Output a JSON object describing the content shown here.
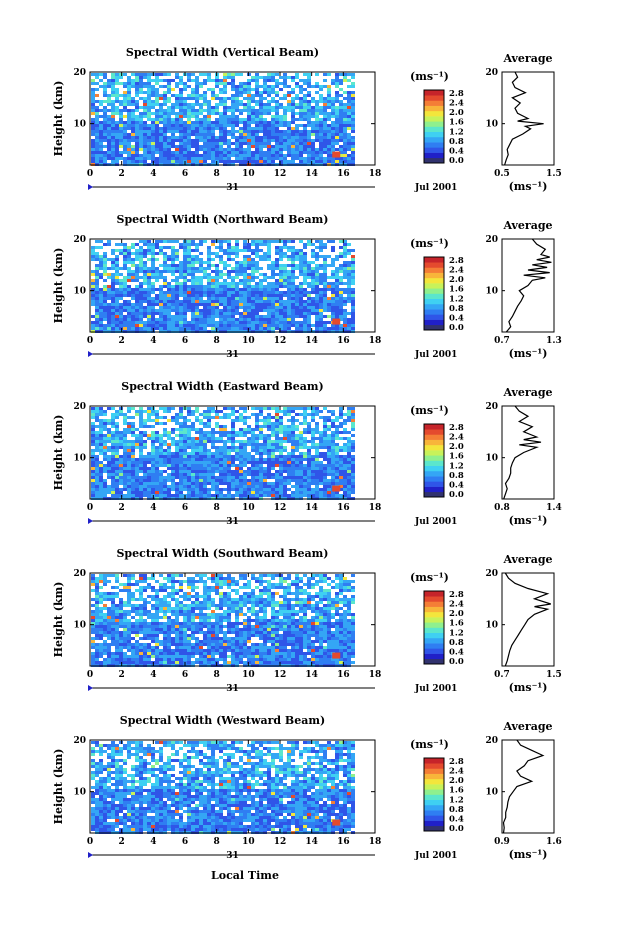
{
  "figure": {
    "x_title": "Local Time",
    "date_label": "Jul 2001",
    "day_label": "31",
    "colors": {
      "scale": [
        "#31326e",
        "#2020c8",
        "#2f55e8",
        "#2f7ef2",
        "#34a6f5",
        "#3fd0f2",
        "#5be6cc",
        "#8ff08e",
        "#c8f25a",
        "#f3e63c",
        "#f8b53a",
        "#f47e36",
        "#e44a2e",
        "#c6242a"
      ],
      "missing": "#ffffff"
    }
  },
  "chart_data": [
    {
      "type": "heatmap",
      "title": "Spectral Width (Vertical Beam)",
      "xlabel": "",
      "ylabel": "Height (km)",
      "xlim": [
        0,
        18
      ],
      "ylim": [
        2,
        20
      ],
      "xticks": [
        "0",
        "2",
        "4",
        "6",
        "8",
        "10",
        "12",
        "14",
        "16",
        "18"
      ],
      "yticks": [
        "10",
        "20"
      ],
      "colorbar": {
        "unit": "(ms⁻¹)",
        "ticks": [
          "0.0",
          "0.4",
          "0.8",
          "1.2",
          "1.6",
          "2.0",
          "2.4",
          "2.8"
        ],
        "range": [
          0,
          2.8
        ]
      },
      "data_end_hour": 16.5,
      "average": {
        "title": "Average",
        "xlabel": "(ms⁻¹)",
        "xticks": [
          "0.5",
          "1.5"
        ],
        "xlim": [
          0.5,
          1.5
        ],
        "profile": [
          [
            2,
            0.55
          ],
          [
            3,
            0.58
          ],
          [
            4,
            0.62
          ],
          [
            5,
            0.6
          ],
          [
            6,
            0.65
          ],
          [
            7,
            0.7
          ],
          [
            8,
            0.9
          ],
          [
            9,
            1.05
          ],
          [
            9.5,
            0.95
          ],
          [
            10,
            1.3
          ],
          [
            10.5,
            0.8
          ],
          [
            11,
            1.0
          ],
          [
            12,
            0.8
          ],
          [
            13,
            0.75
          ],
          [
            14,
            0.85
          ],
          [
            15,
            0.7
          ],
          [
            16,
            0.95
          ],
          [
            17,
            0.75
          ],
          [
            18,
            0.7
          ],
          [
            19,
            0.8
          ],
          [
            20,
            0.75
          ]
        ]
      }
    },
    {
      "type": "heatmap",
      "title": "Spectral Width (Northward Beam)",
      "xlabel": "",
      "ylabel": "Height (km)",
      "xlim": [
        0,
        18
      ],
      "ylim": [
        2,
        20
      ],
      "xticks": [
        "0",
        "2",
        "4",
        "6",
        "8",
        "10",
        "12",
        "14",
        "16",
        "18"
      ],
      "yticks": [
        "10",
        "20"
      ],
      "colorbar": {
        "unit": "(ms⁻¹)",
        "ticks": [
          "0.0",
          "0.4",
          "0.8",
          "1.2",
          "1.6",
          "2.0",
          "2.4",
          "2.8"
        ],
        "range": [
          0,
          2.8
        ]
      },
      "data_end_hour": 16.5,
      "average": {
        "title": "Average",
        "xlabel": "(ms⁻¹)",
        "xticks": [
          "0.7",
          "1.3"
        ],
        "xlim": [
          0.7,
          1.3
        ],
        "profile": [
          [
            2,
            0.75
          ],
          [
            3,
            0.8
          ],
          [
            4,
            0.78
          ],
          [
            5,
            0.82
          ],
          [
            6,
            0.85
          ],
          [
            7,
            0.88
          ],
          [
            8,
            0.92
          ],
          [
            9,
            0.95
          ],
          [
            10,
            0.9
          ],
          [
            11,
            1.0
          ],
          [
            12,
            1.05
          ],
          [
            12.5,
            1.2
          ],
          [
            13,
            0.95
          ],
          [
            13.5,
            1.25
          ],
          [
            14,
            1.0
          ],
          [
            14.5,
            1.22
          ],
          [
            15,
            1.05
          ],
          [
            15.5,
            1.27
          ],
          [
            16,
            1.1
          ],
          [
            16.5,
            1.25
          ],
          [
            17,
            1.15
          ],
          [
            18,
            1.2
          ],
          [
            19,
            1.1
          ],
          [
            20,
            1.05
          ]
        ]
      }
    },
    {
      "type": "heatmap",
      "title": "Spectral Width (Eastward Beam)",
      "xlabel": "",
      "ylabel": "Height (km)",
      "xlim": [
        0,
        18
      ],
      "ylim": [
        2,
        20
      ],
      "xticks": [
        "0",
        "2",
        "4",
        "6",
        "8",
        "10",
        "12",
        "14",
        "16",
        "18"
      ],
      "yticks": [
        "10",
        "20"
      ],
      "colorbar": {
        "unit": "(ms⁻¹)",
        "ticks": [
          "0.0",
          "0.4",
          "0.8",
          "1.2",
          "1.6",
          "2.0",
          "2.4",
          "2.8"
        ],
        "range": [
          0,
          2.8
        ]
      },
      "data_end_hour": 16.5,
      "average": {
        "title": "Average",
        "xlabel": "(ms⁻¹)",
        "xticks": [
          "0.8",
          "1.4"
        ],
        "xlim": [
          0.8,
          1.4
        ],
        "profile": [
          [
            2,
            0.82
          ],
          [
            3,
            0.84
          ],
          [
            4,
            0.86
          ],
          [
            5,
            0.84
          ],
          [
            6,
            0.88
          ],
          [
            7,
            0.9
          ],
          [
            8,
            0.9
          ],
          [
            9,
            0.92
          ],
          [
            10,
            0.95
          ],
          [
            11,
            1.05
          ],
          [
            12,
            1.2
          ],
          [
            12.5,
            1.0
          ],
          [
            13,
            1.25
          ],
          [
            13.5,
            1.05
          ],
          [
            14,
            1.2
          ],
          [
            15,
            1.05
          ],
          [
            16,
            1.15
          ],
          [
            17,
            1.0
          ],
          [
            18,
            1.1
          ],
          [
            19,
            1.0
          ],
          [
            20,
            0.95
          ]
        ]
      }
    },
    {
      "type": "heatmap",
      "title": "Spectral Width (Southward Beam)",
      "xlabel": "",
      "ylabel": "Height (km)",
      "xlim": [
        0,
        18
      ],
      "ylim": [
        2,
        20
      ],
      "xticks": [
        "0",
        "2",
        "4",
        "6",
        "8",
        "10",
        "12",
        "14",
        "16",
        "18"
      ],
      "yticks": [
        "10",
        "20"
      ],
      "colorbar": {
        "unit": "(ms⁻¹)",
        "ticks": [
          "0.0",
          "0.4",
          "0.8",
          "1.2",
          "1.6",
          "2.0",
          "2.4",
          "2.8"
        ],
        "range": [
          0,
          2.8
        ]
      },
      "data_end_hour": 16.5,
      "average": {
        "title": "Average",
        "xlabel": "(ms⁻¹)",
        "xticks": [
          "0.7",
          "1.5"
        ],
        "xlim": [
          0.7,
          1.5
        ],
        "profile": [
          [
            2,
            0.75
          ],
          [
            3,
            0.78
          ],
          [
            4,
            0.8
          ],
          [
            5,
            0.82
          ],
          [
            6,
            0.85
          ],
          [
            7,
            0.9
          ],
          [
            8,
            0.95
          ],
          [
            9,
            1.0
          ],
          [
            10,
            1.05
          ],
          [
            11,
            1.1
          ],
          [
            12,
            1.2
          ],
          [
            13,
            1.4
          ],
          [
            13.5,
            1.2
          ],
          [
            14,
            1.45
          ],
          [
            15,
            1.2
          ],
          [
            16,
            1.4
          ],
          [
            17,
            1.1
          ],
          [
            18,
            0.9
          ],
          [
            19,
            0.8
          ],
          [
            20,
            0.75
          ]
        ]
      }
    },
    {
      "type": "heatmap",
      "title": "Spectral Width (Westward Beam)",
      "xlabel": "",
      "ylabel": "Height (km)",
      "xlim": [
        0,
        18
      ],
      "ylim": [
        2,
        20
      ],
      "xticks": [
        "0",
        "2",
        "4",
        "6",
        "8",
        "10",
        "12",
        "14",
        "16",
        "18"
      ],
      "yticks": [
        "10",
        "20"
      ],
      "colorbar": {
        "unit": "(ms⁻¹)",
        "ticks": [
          "0.0",
          "0.4",
          "0.8",
          "1.2",
          "1.6",
          "2.0",
          "2.4",
          "2.8"
        ],
        "range": [
          0,
          2.8
        ]
      },
      "data_end_hour": 16.5,
      "average": {
        "title": "Average",
        "xlabel": "(ms⁻¹)",
        "xticks": [
          "0.9",
          "1.6"
        ],
        "xlim": [
          0.9,
          1.6
        ],
        "profile": [
          [
            2,
            0.92
          ],
          [
            3,
            0.93
          ],
          [
            4,
            0.92
          ],
          [
            5,
            0.95
          ],
          [
            6,
            0.95
          ],
          [
            7,
            0.97
          ],
          [
            8,
            0.98
          ],
          [
            9,
            1.0
          ],
          [
            10,
            1.05
          ],
          [
            11,
            1.1
          ],
          [
            12,
            1.3
          ],
          [
            13,
            1.15
          ],
          [
            14,
            1.1
          ],
          [
            15,
            1.2
          ],
          [
            16,
            1.25
          ],
          [
            17,
            1.45
          ],
          [
            18,
            1.3
          ],
          [
            19,
            1.15
          ],
          [
            20,
            1.1
          ]
        ]
      }
    }
  ]
}
